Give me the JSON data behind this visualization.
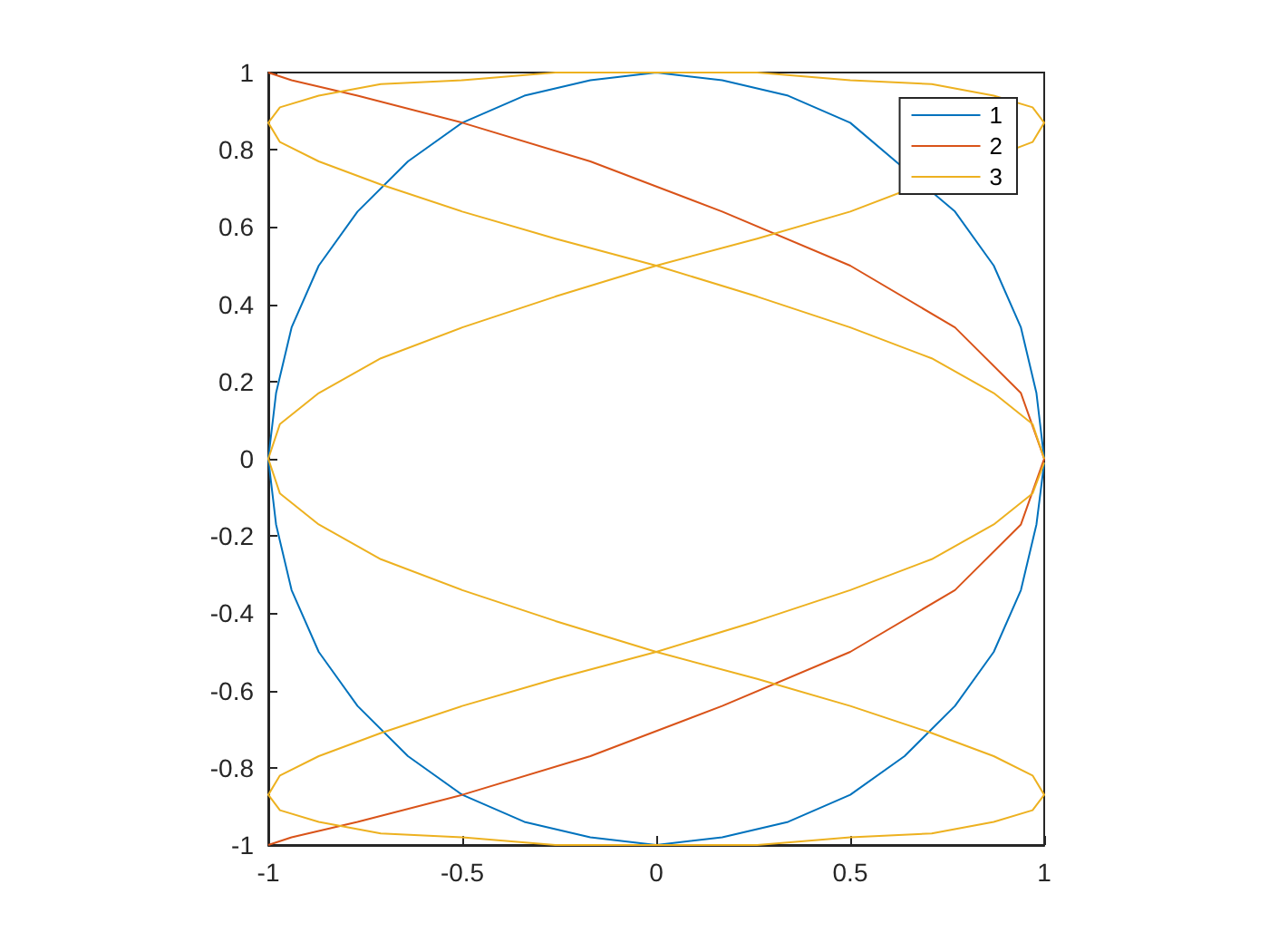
{
  "chart_data": {
    "type": "line",
    "xlim": [
      -1,
      1
    ],
    "xticks": [
      -1,
      -0.5,
      0,
      0.5,
      1
    ],
    "ylim": [
      -1,
      1
    ],
    "yticks": [
      -1,
      -0.8,
      -0.6,
      -0.4,
      -0.2,
      0,
      0.2,
      0.4,
      0.6,
      0.8,
      1
    ],
    "grid": false,
    "legend": "top right",
    "series": [
      {
        "name": "1",
        "color": "#0072bd",
        "x": [
          1,
          0.98,
          0.94,
          0.87,
          0.77,
          0.64,
          0.5,
          0.34,
          0.17,
          0,
          -0.17,
          -0.34,
          -0.5,
          -0.64,
          -0.77,
          -0.87,
          -0.94,
          -0.98,
          -1,
          -0.98,
          -0.94,
          -0.87,
          -0.77,
          -0.64,
          -0.5,
          -0.34,
          -0.17,
          0,
          0.17,
          0.34,
          0.5,
          0.64,
          0.77,
          0.87,
          0.94,
          0.98,
          1
        ],
        "values": [
          0,
          0.17,
          0.34,
          0.5,
          0.64,
          null,
          0.87,
          0.94,
          0.98,
          1,
          0.98,
          0.94,
          0.87,
          0.77,
          0.64,
          0.5,
          0.34,
          0.17,
          0,
          -0.17,
          -0.34,
          -0.5,
          -0.64,
          -0.77,
          -0.87,
          -0.94,
          -0.98,
          -1,
          -0.98,
          -0.94,
          -0.87,
          -0.77,
          -0.64,
          -0.5,
          -0.34,
          -0.17,
          -0.01
        ]
      },
      {
        "name": "2",
        "color": "#d95319",
        "x": [
          -1,
          -0.94,
          -0.77,
          -0.5,
          -0.17,
          0.17,
          0.5,
          0.77,
          0.94,
          1,
          0.94,
          0.77,
          0.5,
          0.17,
          -0.17,
          -0.5,
          -0.77,
          -0.94,
          -1
        ],
        "values": [
          -1,
          -0.98,
          -0.94,
          -0.87,
          -0.77,
          -0.64,
          -0.5,
          -0.34,
          -0.17,
          0,
          0.17,
          0.34,
          0.5,
          0.64,
          0.77,
          0.87,
          0.94,
          0.98,
          1
        ]
      },
      {
        "name": "3",
        "color": "#edb120",
        "x": [
          1,
          0.97,
          0.87,
          0.71,
          0.5,
          0.26,
          0,
          -0.26,
          -0.5,
          -0.71,
          -0.87,
          -0.97,
          -1,
          -0.97,
          -0.87,
          -0.71,
          -0.5,
          -0.26,
          0,
          0.26,
          0.5,
          0.71,
          0.87,
          0.97,
          1,
          0.97,
          0.87,
          0.71,
          0.5,
          0.26,
          0,
          -0.26,
          -0.5,
          -0.71,
          -0.87,
          -0.97,
          -1,
          -0.97,
          -0.87,
          -0.71,
          -0.5,
          -0.26,
          0,
          0.26,
          0.5,
          0.71,
          0.87,
          0.97,
          1,
          0.97,
          0.87,
          0.71,
          0.5,
          0.26,
          0,
          -0.26,
          -0.5,
          -0.71,
          -0.87,
          -0.97,
          -1,
          -0.97,
          -0.87,
          -0.71,
          -0.5,
          -0.26,
          0,
          0.26,
          0.5,
          0.71,
          0.87,
          0.97,
          1
        ],
        "values": [
          0,
          0.09,
          0.17,
          0.26,
          0.34,
          0.42,
          0.5,
          0.57,
          0.64,
          0.71,
          0.77,
          0.82,
          0.87,
          0.91,
          0.94,
          0.97,
          0.98,
          1,
          1,
          1,
          0.98,
          0.97,
          0.94,
          0.91,
          0.87,
          0.82,
          null,
          null,
          0.64,
          0.57,
          0.5,
          0.42,
          0.34,
          0.26,
          0.17,
          0.09,
          0,
          -0.09,
          -0.17,
          -0.26,
          -0.34,
          -0.42,
          -0.5,
          -0.57,
          -0.64,
          -0.71,
          -0.77,
          -0.82,
          -0.87,
          -0.91,
          -0.94,
          -0.97,
          -0.98,
          -1,
          -1,
          -1,
          -0.98,
          -0.97,
          -0.94,
          -0.91,
          -0.87,
          -0.82,
          -0.77,
          -0.71,
          -0.64,
          -0.57,
          -0.5,
          -0.42,
          -0.34,
          -0.26,
          -0.17,
          -0.09,
          -0.01
        ]
      }
    ]
  }
}
